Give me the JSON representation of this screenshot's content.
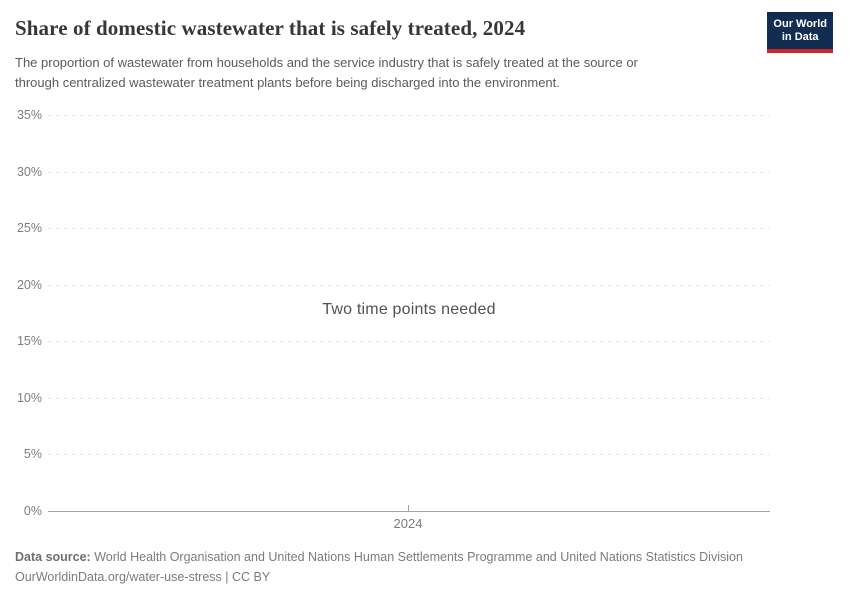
{
  "header": {
    "title": "Share of domestic wastewater that is safely treated, 2024",
    "subtitle_lines": [
      "The proportion of wastewater from households and the service industry that is safely treated at the source or",
      "through centralized wastewater treatment plants before being discharged into the environment."
    ],
    "logo": {
      "line1": "Our World",
      "line2": "in Data"
    }
  },
  "chart_data": {
    "type": "line",
    "title": "Share of domestic wastewater that is safely treated, 2024",
    "series": [],
    "empty_message": "Two time points needed",
    "ylim": [
      0,
      35
    ],
    "y_ticks": [
      {
        "value": 0,
        "label": "0%"
      },
      {
        "value": 5,
        "label": "5%"
      },
      {
        "value": 10,
        "label": "10%"
      },
      {
        "value": 15,
        "label": "15%"
      },
      {
        "value": 20,
        "label": "20%"
      },
      {
        "value": 25,
        "label": "25%"
      },
      {
        "value": 30,
        "label": "30%"
      },
      {
        "value": 35,
        "label": "35%"
      }
    ],
    "x_ticks": [
      {
        "label": "2024"
      }
    ],
    "grid": "horizontal-dashed",
    "legend": "none"
  },
  "footer": {
    "source_label": "Data source:",
    "source_text": "World Health Organisation and United Nations Human Settlements Programme and United Nations Statistics Division",
    "citation_line": "OurWorldinData.org/water-use-stress | CC BY"
  },
  "colors": {
    "title_text": "#383636",
    "subtitle_text": "#5b5b5b",
    "logo_bg": "#132c52",
    "logo_stripe": "#c5292a",
    "gridline": "#e8e8e8",
    "axis_line": "#a3a3a3",
    "tick_label": "#7d7d7d",
    "message_text": "#525252",
    "footer_text": "#7c7c7c",
    "footer_label": "#6f6f6f"
  }
}
